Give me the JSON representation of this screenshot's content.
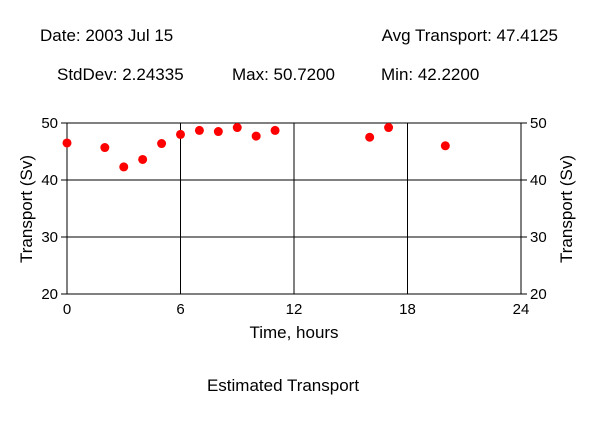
{
  "header": {
    "date_text": "Date: 2003 Jul 15",
    "avg_text": "Avg Transport: 47.4125",
    "stddev_text": "StdDev: 2.24335",
    "max_text": "Max: 50.7200",
    "min_text": "Min: 42.2200"
  },
  "chart_data": {
    "type": "scatter",
    "title": "Estimated Transport",
    "xlabel": "Time, hours",
    "ylabel": "Transport (Sv)",
    "xlim": [
      0,
      24
    ],
    "ylim": [
      20,
      50
    ],
    "xticks": [
      0,
      6,
      12,
      18,
      24
    ],
    "yticks": [
      20,
      30,
      40,
      50
    ],
    "grid": true,
    "marker_color": "#ff0000",
    "points": [
      {
        "x": 0,
        "y": 46.5
      },
      {
        "x": 2,
        "y": 45.7
      },
      {
        "x": 3,
        "y": 42.3
      },
      {
        "x": 4,
        "y": 43.6
      },
      {
        "x": 5,
        "y": 46.4
      },
      {
        "x": 6,
        "y": 48.0
      },
      {
        "x": 7,
        "y": 48.7
      },
      {
        "x": 8,
        "y": 48.5
      },
      {
        "x": 9,
        "y": 49.2
      },
      {
        "x": 10,
        "y": 47.7
      },
      {
        "x": 11,
        "y": 48.7
      },
      {
        "x": 16,
        "y": 47.5
      },
      {
        "x": 17,
        "y": 49.2
      },
      {
        "x": 20,
        "y": 46.0
      }
    ]
  }
}
